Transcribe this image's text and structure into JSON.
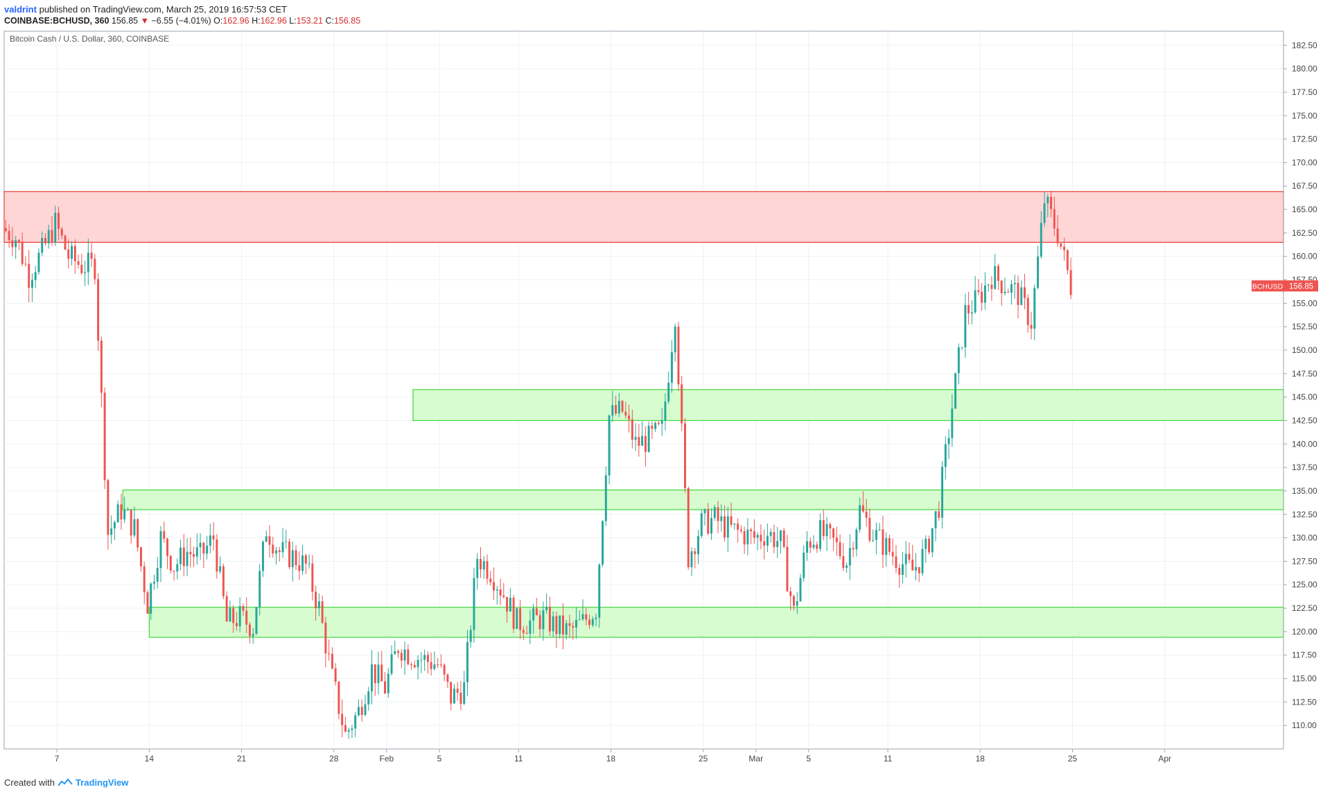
{
  "header": {
    "author": "valdrint",
    "published_text": "published on TradingView.com, March 25, 2019 16:57:53 CET",
    "symbol": "COINBASE:BCHUSD, 360",
    "last": "156.85",
    "change": "−6.55 (−4.01%)",
    "open_label": "O:",
    "open": "162.96",
    "high_label": "H:",
    "high": "162.96",
    "low_label": "L:",
    "low": "153.21",
    "close_label": "C:",
    "close": "156.85",
    "down_arrow_icon": "triangle-down-icon"
  },
  "footer": {
    "created_with": "Created with",
    "brand": "TradingView",
    "logo_icon": "tradingview-logo-icon"
  },
  "colors": {
    "up": "#26a69a",
    "down": "#ef5350",
    "resistance_fill": "#ffd6d6",
    "resistance_stroke": "#e53935",
    "support_fill": "#d6fcd0",
    "support_stroke": "#43d63a",
    "grid": "#eef1f4",
    "price_tag": "#ef5350"
  },
  "chart_data": {
    "type": "candlestick",
    "title": "Bitcoin Cash / U.S. Dollar, 360, COINBASE",
    "price_tag": {
      "label": "BCHUSD",
      "value": "156.85",
      "price": 156.85
    },
    "ylim": [
      107.5,
      184.0
    ],
    "xlim": [
      "2019-01-03",
      "2019-04-10"
    ],
    "y_ticks": [
      "110.00",
      "112.50",
      "115.00",
      "117.50",
      "120.00",
      "122.50",
      "125.00",
      "127.50",
      "130.00",
      "132.50",
      "135.00",
      "137.50",
      "140.00",
      "142.50",
      "145.00",
      "147.50",
      "150.00",
      "152.50",
      "155.00",
      "157.50",
      "160.00",
      "162.50",
      "165.00",
      "167.50",
      "170.00",
      "172.50",
      "175.00",
      "177.50",
      "180.00",
      "182.50"
    ],
    "x_ticks": [
      {
        "label": "7",
        "date": "2019-01-07"
      },
      {
        "label": "14",
        "date": "2019-01-14"
      },
      {
        "label": "21",
        "date": "2019-01-21"
      },
      {
        "label": "28",
        "date": "2019-01-28"
      },
      {
        "label": "Feb",
        "date": "2019-02-01"
      },
      {
        "label": "5",
        "date": "2019-02-05"
      },
      {
        "label": "11",
        "date": "2019-02-11"
      },
      {
        "label": "18",
        "date": "2019-02-18"
      },
      {
        "label": "25",
        "date": "2019-02-25"
      },
      {
        "label": "Mar",
        "date": "2019-03-01"
      },
      {
        "label": "5",
        "date": "2019-03-05"
      },
      {
        "label": "11",
        "date": "2019-03-11"
      },
      {
        "label": "18",
        "date": "2019-03-18"
      },
      {
        "label": "25",
        "date": "2019-03-25"
      },
      {
        "label": "Apr",
        "date": "2019-04-01"
      }
    ],
    "zones": [
      {
        "kind": "resistance",
        "from": 161.5,
        "to": 166.9,
        "start": "2019-01-03",
        "end": "2019-04-10"
      },
      {
        "kind": "support",
        "from": 142.5,
        "to": 145.8,
        "start": "2019-02-03",
        "end": "2019-04-10"
      },
      {
        "kind": "support",
        "from": 133.0,
        "to": 135.1,
        "start": "2019-01-12",
        "end": "2019-04-10"
      },
      {
        "kind": "support",
        "from": 119.4,
        "to": 122.6,
        "start": "2019-01-14",
        "end": "2019-04-10"
      }
    ],
    "daily_path": [
      {
        "date": "2019-01-03",
        "close": 163.0
      },
      {
        "date": "2019-01-04",
        "close": 162.0
      },
      {
        "date": "2019-01-05",
        "close": 158.0
      },
      {
        "date": "2019-01-06",
        "close": 160.5
      },
      {
        "date": "2019-01-07",
        "close": 163.5
      },
      {
        "date": "2019-01-08",
        "close": 160.0
      },
      {
        "date": "2019-01-09",
        "close": 159.0
      },
      {
        "date": "2019-01-10",
        "close": 159.0
      },
      {
        "date": "2019-01-11",
        "close": 130.5
      },
      {
        "date": "2019-01-12",
        "close": 133.0
      },
      {
        "date": "2019-01-13",
        "close": 131.0
      },
      {
        "date": "2019-01-14",
        "close": 123.0
      },
      {
        "date": "2019-01-15",
        "close": 130.0
      },
      {
        "date": "2019-01-16",
        "close": 127.0
      },
      {
        "date": "2019-01-17",
        "close": 128.5
      },
      {
        "date": "2019-01-18",
        "close": 128.0
      },
      {
        "date": "2019-01-19",
        "close": 130.0
      },
      {
        "date": "2019-01-20",
        "close": 121.0
      },
      {
        "date": "2019-01-21",
        "close": 121.5
      },
      {
        "date": "2019-01-22",
        "close": 120.5
      },
      {
        "date": "2019-01-23",
        "close": 131.0
      },
      {
        "date": "2019-01-24",
        "close": 128.5
      },
      {
        "date": "2019-01-25",
        "close": 128.0
      },
      {
        "date": "2019-01-26",
        "close": 127.0
      },
      {
        "date": "2019-01-27",
        "close": 122.5
      },
      {
        "date": "2019-01-28",
        "close": 115.0
      },
      {
        "date": "2019-01-29",
        "close": 109.0
      },
      {
        "date": "2019-01-30",
        "close": 111.5
      },
      {
        "date": "2019-01-31",
        "close": 116.0
      },
      {
        "date": "2019-02-01",
        "close": 114.0
      },
      {
        "date": "2019-02-02",
        "close": 118.5
      },
      {
        "date": "2019-02-03",
        "close": 117.5
      },
      {
        "date": "2019-02-04",
        "close": 117.0
      },
      {
        "date": "2019-02-05",
        "close": 116.5
      },
      {
        "date": "2019-02-06",
        "close": 113.0
      },
      {
        "date": "2019-02-07",
        "close": 114.0
      },
      {
        "date": "2019-02-08",
        "close": 128.0
      },
      {
        "date": "2019-02-09",
        "close": 126.5
      },
      {
        "date": "2019-02-10",
        "close": 124.0
      },
      {
        "date": "2019-02-11",
        "close": 121.0
      },
      {
        "date": "2019-02-12",
        "close": 121.0
      },
      {
        "date": "2019-02-13",
        "close": 121.5
      },
      {
        "date": "2019-02-14",
        "close": 120.5
      },
      {
        "date": "2019-02-15",
        "close": 120.0
      },
      {
        "date": "2019-02-16",
        "close": 121.0
      },
      {
        "date": "2019-02-17",
        "close": 122.5
      },
      {
        "date": "2019-02-18",
        "close": 143.0
      },
      {
        "date": "2019-02-19",
        "close": 143.5
      },
      {
        "date": "2019-02-20",
        "close": 140.0
      },
      {
        "date": "2019-02-21",
        "close": 140.5
      },
      {
        "date": "2019-02-22",
        "close": 141.5
      },
      {
        "date": "2019-02-23",
        "close": 154.0
      },
      {
        "date": "2019-02-24",
        "close": 128.0
      },
      {
        "date": "2019-02-25",
        "close": 131.5
      },
      {
        "date": "2019-02-26",
        "close": 132.0
      },
      {
        "date": "2019-02-27",
        "close": 131.0
      },
      {
        "date": "2019-02-28",
        "close": 130.5
      },
      {
        "date": "2019-03-01",
        "close": 130.0
      },
      {
        "date": "2019-03-02",
        "close": 130.5
      },
      {
        "date": "2019-03-03",
        "close": 129.5
      },
      {
        "date": "2019-03-04",
        "close": 122.0
      },
      {
        "date": "2019-03-05",
        "close": 129.5
      },
      {
        "date": "2019-03-06",
        "close": 130.5
      },
      {
        "date": "2019-03-07",
        "close": 129.5
      },
      {
        "date": "2019-03-08",
        "close": 127.5
      },
      {
        "date": "2019-03-09",
        "close": 133.0
      },
      {
        "date": "2019-03-10",
        "close": 130.5
      },
      {
        "date": "2019-03-11",
        "close": 129.0
      },
      {
        "date": "2019-03-12",
        "close": 127.5
      },
      {
        "date": "2019-03-13",
        "close": 126.5
      },
      {
        "date": "2019-03-14",
        "close": 128.5
      },
      {
        "date": "2019-03-15",
        "close": 133.5
      },
      {
        "date": "2019-03-16",
        "close": 144.0
      },
      {
        "date": "2019-03-17",
        "close": 154.0
      },
      {
        "date": "2019-03-18",
        "close": 155.5
      },
      {
        "date": "2019-03-19",
        "close": 158.0
      },
      {
        "date": "2019-03-20",
        "close": 157.0
      },
      {
        "date": "2019-03-21",
        "close": 156.0
      },
      {
        "date": "2019-03-22",
        "close": 153.0
      },
      {
        "date": "2019-03-23",
        "close": 166.0
      },
      {
        "date": "2019-03-24",
        "close": 162.5
      },
      {
        "date": "2019-03-25",
        "close": 156.85
      }
    ]
  }
}
